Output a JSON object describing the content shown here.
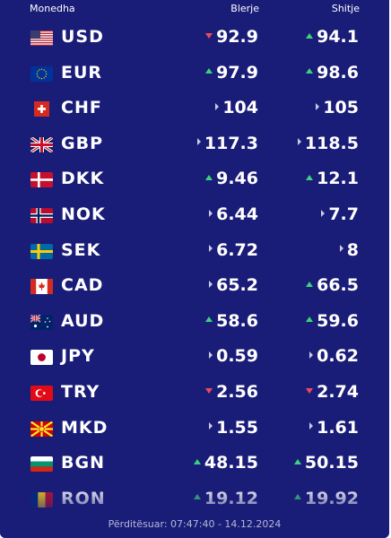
{
  "header": {
    "col_currency": "Monedha",
    "col_buy": "Blerje",
    "col_sell": "Shitje"
  },
  "rates": [
    {
      "code": "USD",
      "flag": "us-flag-icon",
      "buy": "92.9",
      "buy_trend": "down",
      "sell": "94.1",
      "sell_trend": "up"
    },
    {
      "code": "EUR",
      "flag": "eu-flag-icon",
      "buy": "97.9",
      "buy_trend": "up",
      "sell": "98.6",
      "sell_trend": "up"
    },
    {
      "code": "CHF",
      "flag": "ch-flag-icon",
      "buy": "104",
      "buy_trend": "same",
      "sell": "105",
      "sell_trend": "same"
    },
    {
      "code": "GBP",
      "flag": "gb-flag-icon",
      "buy": "117.3",
      "buy_trend": "same",
      "sell": "118.5",
      "sell_trend": "same"
    },
    {
      "code": "DKK",
      "flag": "dk-flag-icon",
      "buy": "9.46",
      "buy_trend": "up",
      "sell": "12.1",
      "sell_trend": "up"
    },
    {
      "code": "NOK",
      "flag": "no-flag-icon",
      "buy": "6.44",
      "buy_trend": "same",
      "sell": "7.7",
      "sell_trend": "same"
    },
    {
      "code": "SEK",
      "flag": "se-flag-icon",
      "buy": "6.72",
      "buy_trend": "same",
      "sell": "8",
      "sell_trend": "same"
    },
    {
      "code": "CAD",
      "flag": "ca-flag-icon",
      "buy": "65.2",
      "buy_trend": "same",
      "sell": "66.5",
      "sell_trend": "up"
    },
    {
      "code": "AUD",
      "flag": "au-flag-icon",
      "buy": "58.6",
      "buy_trend": "up",
      "sell": "59.6",
      "sell_trend": "up"
    },
    {
      "code": "JPY",
      "flag": "jp-flag-icon",
      "buy": "0.59",
      "buy_trend": "same",
      "sell": "0.62",
      "sell_trend": "same"
    },
    {
      "code": "TRY",
      "flag": "tr-flag-icon",
      "buy": "2.56",
      "buy_trend": "down",
      "sell": "2.74",
      "sell_trend": "down"
    },
    {
      "code": "MKD",
      "flag": "mk-flag-icon",
      "buy": "1.55",
      "buy_trend": "same",
      "sell": "1.61",
      "sell_trend": "same"
    },
    {
      "code": "BGN",
      "flag": "bg-flag-icon",
      "buy": "48.15",
      "buy_trend": "up",
      "sell": "50.15",
      "sell_trend": "up"
    },
    {
      "code": "RON",
      "flag": "ro-flag-icon",
      "buy": "19.12",
      "buy_trend": "up",
      "sell": "19.92",
      "sell_trend": "up"
    }
  ],
  "footer": {
    "updated": "Përditësuar: 07:47:40 - 14.12.2024"
  },
  "colors": {
    "panel": "#1a1d78",
    "up": "#37d67a",
    "down": "#ef4a5a",
    "same": "#c9cae6",
    "text": "#ffffff"
  }
}
